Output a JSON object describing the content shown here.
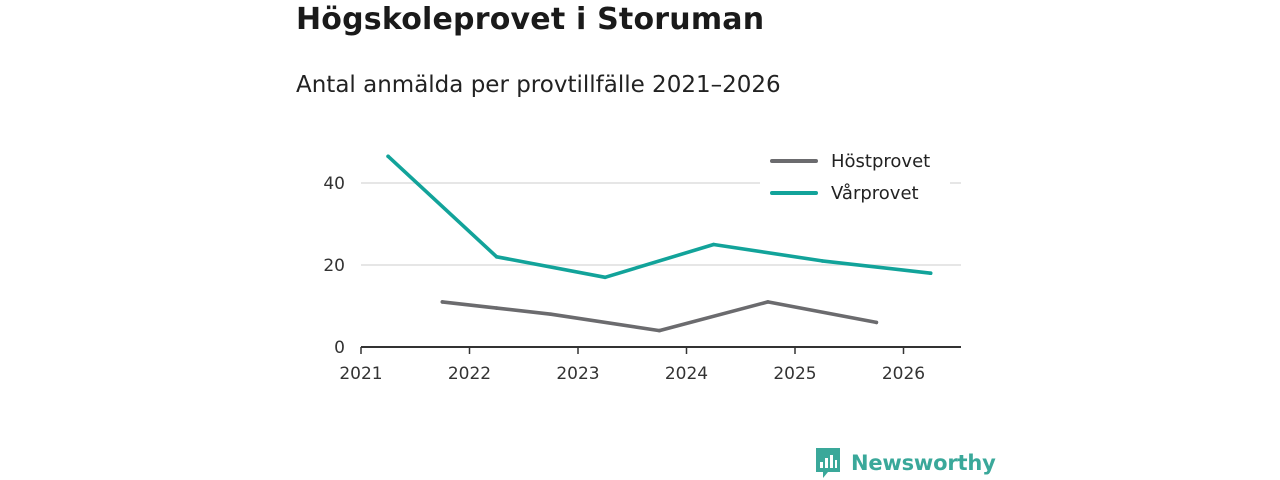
{
  "header": {
    "title": "Högskoleprovet i Storuman",
    "subtitle": "Antal anmälda per provtillfälle 2021–2026"
  },
  "chart_data": {
    "type": "line",
    "title": "Högskoleprovet i Storuman",
    "subtitle": "Antal anmälda per provtillfälle 2021–2026",
    "xlabel": "",
    "ylabel": "",
    "x_ticks": [
      "2021",
      "2022",
      "2023",
      "2024",
      "2025",
      "2026"
    ],
    "y_ticks": [
      "0",
      "20",
      "40"
    ],
    "ylim": [
      0,
      50
    ],
    "xlim": [
      2021,
      2026.55
    ],
    "grid": true,
    "legend_position": "top-right",
    "series": [
      {
        "name": "Höstprovet",
        "color": "#6b6b6e",
        "x": [
          2021.75,
          2022.25,
          2022.75,
          2023.75,
          2024.75,
          2025.75
        ],
        "values": [
          11,
          9.5,
          8,
          4,
          11,
          6
        ]
      },
      {
        "name": "Vårprovet",
        "color": "#12a39a",
        "x": [
          2021.25,
          2022.25,
          2023.25,
          2024.25,
          2025.25,
          2026.25
        ],
        "values": [
          46.5,
          22,
          17,
          25,
          21,
          18
        ]
      }
    ]
  },
  "footer": {
    "brand": "Newsworthy",
    "brand_color": "#3aa89a",
    "logo_icon": "newsworthy-logo-icon"
  }
}
